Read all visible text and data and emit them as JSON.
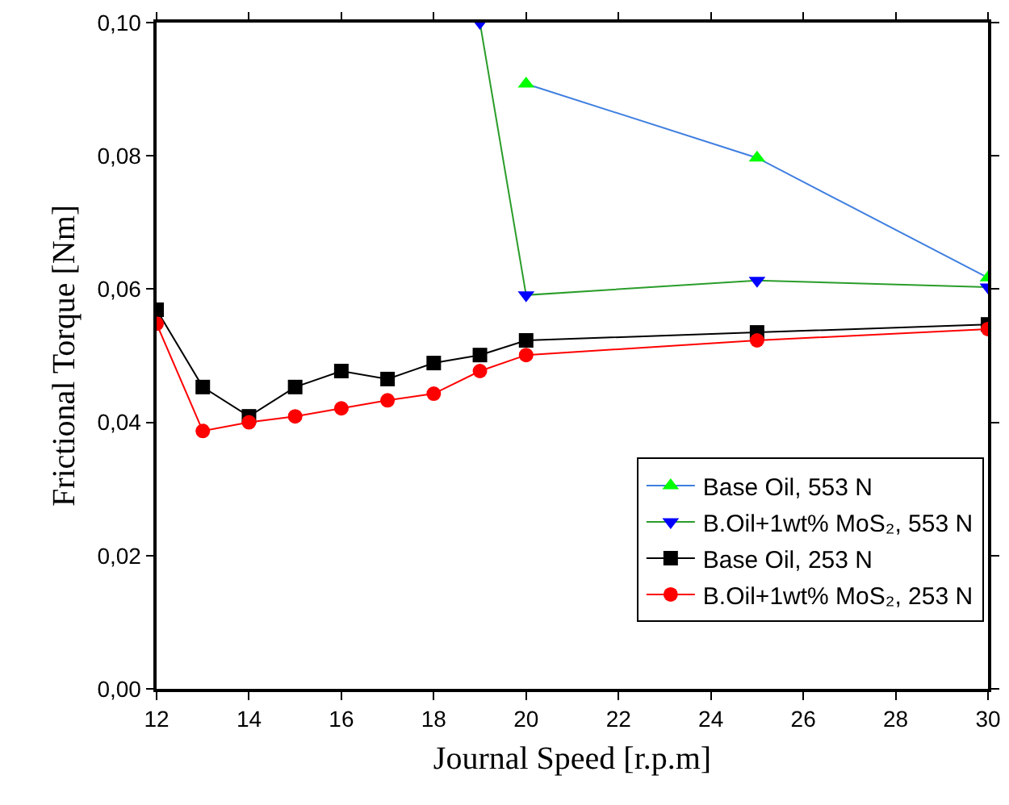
{
  "chart_data": {
    "type": "line",
    "xlabel": "Journal Speed [r.p.m]",
    "ylabel": "Frictional Torque [Nm]",
    "xlim": [
      12,
      30
    ],
    "xticks": [
      12,
      14,
      16,
      18,
      20,
      22,
      24,
      26,
      28,
      30
    ],
    "ylim": [
      0,
      0.1
    ],
    "yticks": [
      {
        "value": 0,
        "label": "0,00"
      },
      {
        "value": 0.02,
        "label": "0,02"
      },
      {
        "value": 0.04,
        "label": "0,04"
      },
      {
        "value": 0.06,
        "label": "0,06"
      },
      {
        "value": 0.08,
        "label": "0,08"
      },
      {
        "value": 0.1,
        "label": "0,10"
      }
    ],
    "grid": false,
    "legend": "bottom right",
    "series": [
      {
        "name": "Base Oil, 553 N",
        "color": "#3f7fe0",
        "colors": [
          "#00ff00",
          "#00ff00",
          "#00ff00"
        ],
        "marker": "triangle",
        "x": [
          20,
          25,
          30
        ],
        "values": [
          0.0908,
          0.0797,
          0.0617
        ]
      },
      {
        "name": "B.Oil+1wt% MoS₂, 553 N",
        "color": "#2a9d2a",
        "colors": [
          "#0000ff",
          "#0000ff",
          "#0000ff",
          "#0000ff"
        ],
        "marker": "triangle-down",
        "x": [
          19,
          20,
          25,
          30
        ],
        "values": [
          0.1,
          0.0591,
          0.0613,
          0.0603
        ]
      },
      {
        "name": "Base Oil, 253 N",
        "color": "#000000",
        "marker": "square",
        "x": [
          12,
          13,
          14,
          15,
          16,
          17,
          18,
          19,
          20,
          25,
          30
        ],
        "values": [
          0.0569,
          0.0453,
          0.0409,
          0.0453,
          0.0477,
          0.0465,
          0.0489,
          0.0501,
          0.0523,
          0.0535,
          0.0547
        ]
      },
      {
        "name": "B.Oil+1wt% MoS₂, 253 N",
        "color": "#ff0000",
        "marker": "circle",
        "x": [
          12,
          13,
          14,
          15,
          16,
          17,
          18,
          19,
          20,
          25,
          30
        ],
        "values": [
          0.0548,
          0.0387,
          0.04,
          0.0409,
          0.0421,
          0.0433,
          0.0443,
          0.0477,
          0.0501,
          0.0523,
          0.054
        ]
      }
    ]
  }
}
